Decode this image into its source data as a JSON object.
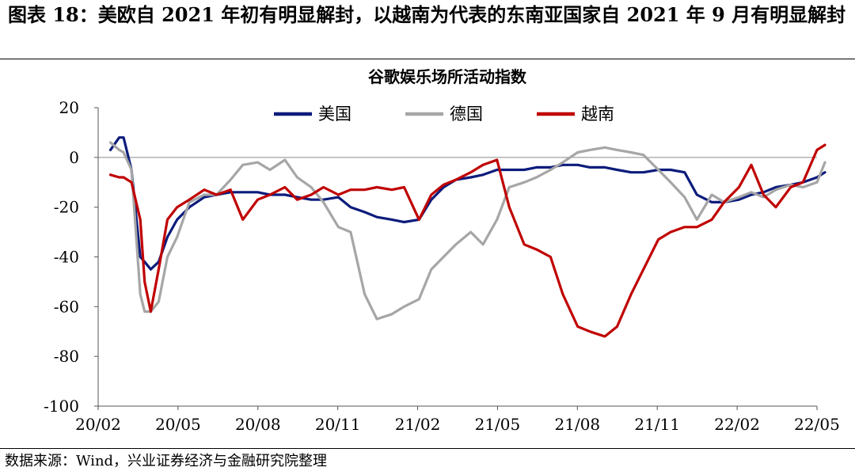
{
  "figure": {
    "title": "图表 18：美欧自 2021 年初有明显解封，以越南为代表的东南亚国家自 2021 年 9 月有明显解封",
    "source": "数据来源：Wind，兴业证券经济与金融研究院整理"
  },
  "chart_data": {
    "type": "line",
    "title": "谷歌娱乐场所活动指数",
    "xlabel": "",
    "ylabel": "",
    "ylim": [
      -100,
      20
    ],
    "yticks": [
      20,
      0,
      -20,
      -40,
      -60,
      -80,
      -100
    ],
    "xticks": [
      "20/02",
      "20/05",
      "20/08",
      "20/11",
      "21/02",
      "21/05",
      "21/08",
      "21/11",
      "22/02",
      "22/05"
    ],
    "x_range": [
      "2020-02",
      "2022-05"
    ],
    "grid": false,
    "zero_line": true,
    "legend_position": "top",
    "x": [
      "2020-02-15",
      "2020-02-25",
      "2020-03-01",
      "2020-03-10",
      "2020-03-20",
      "2020-03-25",
      "2020-04-01",
      "2020-04-10",
      "2020-04-20",
      "2020-05-01",
      "2020-05-15",
      "2020-06-01",
      "2020-06-15",
      "2020-07-01",
      "2020-07-15",
      "2020-08-01",
      "2020-08-15",
      "2020-09-01",
      "2020-09-15",
      "2020-10-01",
      "2020-10-15",
      "2020-11-01",
      "2020-11-15",
      "2020-12-01",
      "2020-12-15",
      "2021-01-01",
      "2021-01-15",
      "2021-02-01",
      "2021-02-15",
      "2021-03-01",
      "2021-03-15",
      "2021-04-01",
      "2021-04-15",
      "2021-05-01",
      "2021-05-15",
      "2021-06-01",
      "2021-06-15",
      "2021-07-01",
      "2021-07-15",
      "2021-08-01",
      "2021-08-15",
      "2021-09-01",
      "2021-09-15",
      "2021-10-01",
      "2021-10-15",
      "2021-11-01",
      "2021-11-15",
      "2021-12-01",
      "2021-12-15",
      "2022-01-01",
      "2022-01-15",
      "2022-02-01",
      "2022-02-15",
      "2022-03-01",
      "2022-03-15",
      "2022-04-01",
      "2022-04-15",
      "2022-05-01",
      "2022-05-10"
    ],
    "series": [
      {
        "name": "美国",
        "color": "#0c1c7c",
        "values": [
          3,
          8,
          8,
          -5,
          -40,
          -42,
          -45,
          -42,
          -32,
          -25,
          -20,
          -16,
          -15,
          -14,
          -14,
          -14,
          -15,
          -15,
          -16,
          -17,
          -17,
          -16,
          -20,
          -22,
          -24,
          -25,
          -26,
          -25,
          -17,
          -12,
          -9,
          -8,
          -7,
          -5,
          -5,
          -5,
          -4,
          -4,
          -3,
          -3,
          -4,
          -4,
          -5,
          -6,
          -6,
          -5,
          -5,
          -6,
          -15,
          -18,
          -18,
          -17,
          -15,
          -14,
          -12,
          -11,
          -10,
          -8,
          -6
        ]
      },
      {
        "name": "德国",
        "color": "#a6a6a6",
        "values": [
          6,
          3,
          2,
          -5,
          -55,
          -62,
          -62,
          -58,
          -40,
          -32,
          -18,
          -15,
          -15,
          -9,
          -3,
          -2,
          -5,
          -1,
          -8,
          -12,
          -18,
          -28,
          -30,
          -55,
          -65,
          -63,
          -60,
          -57,
          -45,
          -40,
          -35,
          -30,
          -35,
          -25,
          -12,
          -10,
          -8,
          -5,
          -2,
          2,
          3,
          4,
          3,
          2,
          1,
          -5,
          -10,
          -16,
          -25,
          -15,
          -18,
          -16,
          -14,
          -16,
          -13,
          -11,
          -12,
          -10,
          -2
        ]
      },
      {
        "name": "越南",
        "color": "#c00000",
        "values": [
          -7,
          -8,
          -8,
          -10,
          -25,
          -50,
          -62,
          -45,
          -25,
          -20,
          -17,
          -13,
          -15,
          -13,
          -25,
          -17,
          -15,
          -12,
          -17,
          -15,
          -12,
          -15,
          -13,
          -13,
          -12,
          -13,
          -12,
          -25,
          -15,
          -11,
          -9,
          -6,
          -3,
          -1,
          -20,
          -35,
          -37,
          -40,
          -55,
          -68,
          -70,
          -72,
          -68,
          -55,
          -45,
          -33,
          -30,
          -28,
          -28,
          -25,
          -18,
          -12,
          -3,
          -15,
          -20,
          -12,
          -10,
          3,
          5
        ]
      }
    ]
  }
}
